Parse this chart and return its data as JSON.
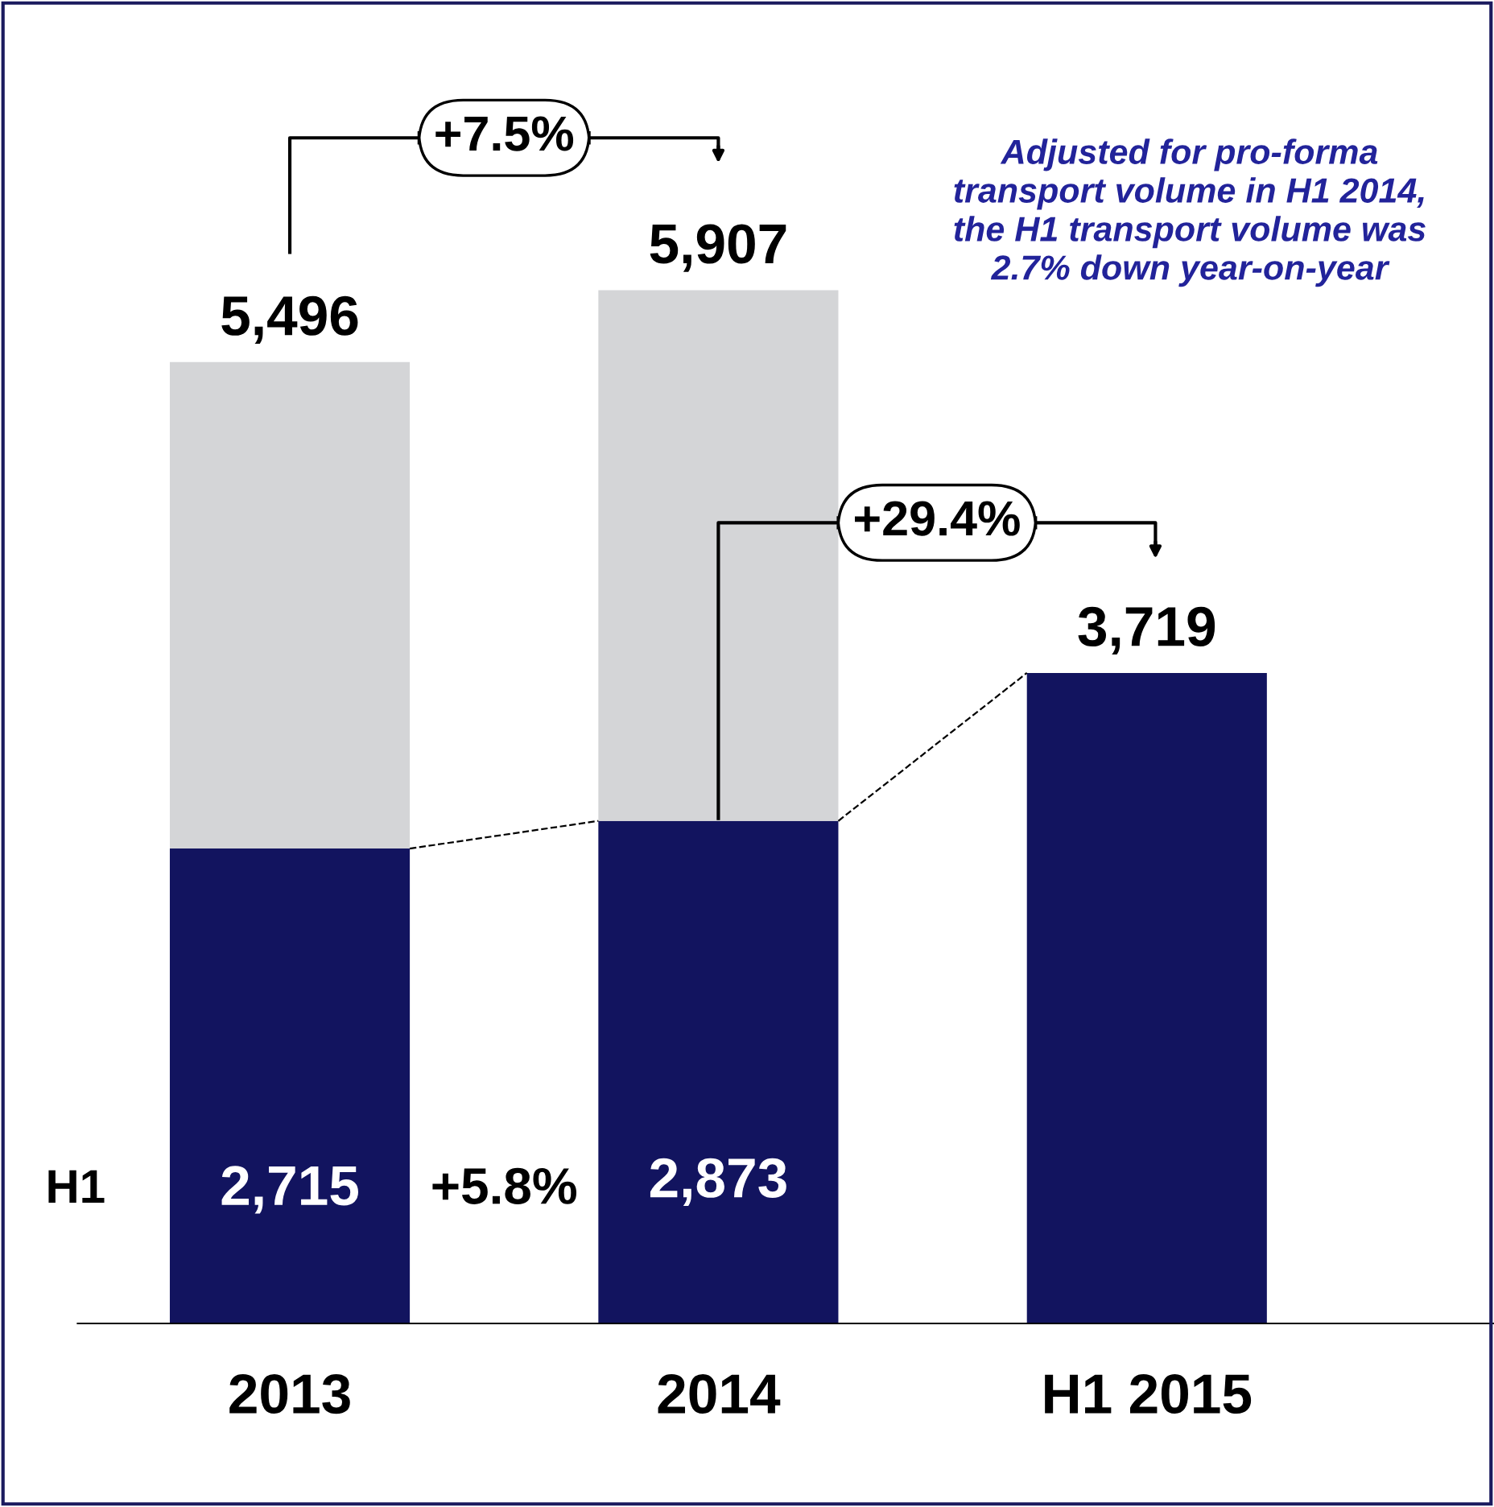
{
  "chart_data": {
    "type": "bar",
    "stacked": true,
    "categories": [
      "2013",
      "2014",
      "H1 2015"
    ],
    "series": [
      {
        "name": "H1",
        "color": "#12145f",
        "values": [
          2715,
          2873,
          3719
        ],
        "value_labels": [
          "2,715",
          "2,873",
          null
        ]
      },
      {
        "color": "#d4d5d7",
        "values": [
          2781,
          3034,
          null
        ]
      }
    ],
    "totals": [
      "5,496",
      "5,907",
      "3,719"
    ],
    "annotations": [
      "+7.5%",
      "+29.4%",
      "+5.8%",
      "Adjusted for pro-forma\ntransport volume in H1 2014,\nthe H1 transport volume was\n2.7% down year-on-year"
    ],
    "legend": false,
    "grid": false
  }
}
